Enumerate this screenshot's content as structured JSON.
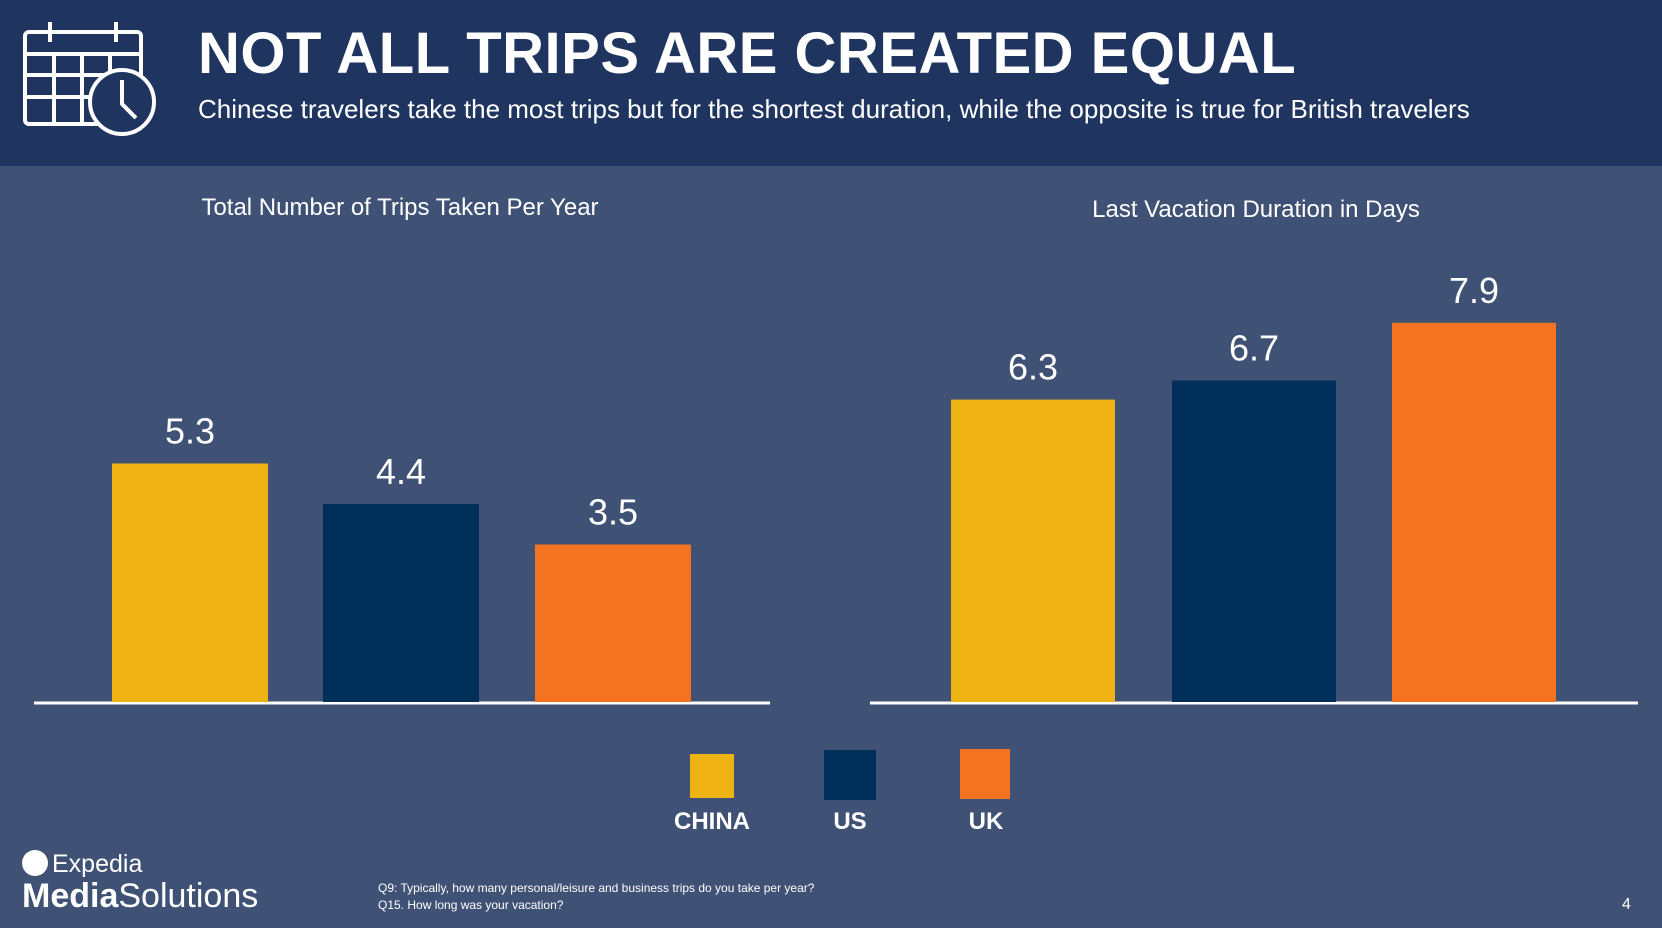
{
  "header": {
    "title": "NOT ALL TRIPS ARE CREATED EQUAL",
    "subtitle": "Chinese travelers take the most trips but for the shortest duration, while the opposite is true for British travelers",
    "icon": "calendar-clock-icon"
  },
  "colors": {
    "china": "#eeb312",
    "us": "#00305a",
    "uk": "#f37320",
    "background": "#3f5275",
    "header_background": "#1f3560"
  },
  "chart_data": [
    {
      "type": "bar",
      "title": "Total Number of Trips Taken Per Year",
      "categories": [
        "CHINA",
        "US",
        "UK"
      ],
      "values": [
        5.3,
        4.4,
        3.5
      ],
      "labels": [
        "5.3",
        "4.4",
        "3.5"
      ],
      "ylim": [
        0,
        9
      ],
      "grid": false
    },
    {
      "type": "bar",
      "title": "Last Vacation Duration in Days",
      "categories": [
        "CHINA",
        "US",
        "UK"
      ],
      "values": [
        6.3,
        6.7,
        7.9
      ],
      "labels": [
        "6.3",
        "6.7",
        "7.9"
      ],
      "ylim": [
        0,
        10
      ],
      "grid": false
    }
  ],
  "legend": {
    "placement": "bottom-center",
    "items": [
      {
        "label": "CHINA",
        "color": "#eeb312"
      },
      {
        "label": "US",
        "color": "#00305a"
      },
      {
        "label": "UK",
        "color": "#f37320"
      }
    ]
  },
  "logo": {
    "line1": "Expedia",
    "line2_bold": "Media",
    "line2_light": "Solutions"
  },
  "footnotes": [
    "Q9: Typically, how many personal/leisure and business trips do you take per year?",
    "Q15. How long was your vacation?"
  ],
  "page_number": "4"
}
